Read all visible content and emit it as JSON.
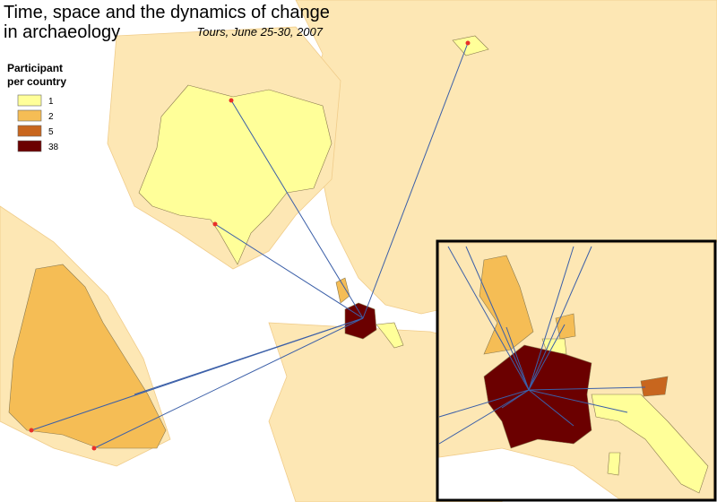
{
  "title_lines": [
    "Time, space and the dynamics of change",
    "in archaeology"
  ],
  "subtitle": "Tours, June 25-30, 2007",
  "legend": {
    "title_lines": [
      "Participant",
      "per country"
    ],
    "items": [
      {
        "value": 1,
        "color": "#ffff99"
      },
      {
        "value": 2,
        "color": "#f5bd55"
      },
      {
        "value": 5,
        "color": "#c8661e"
      },
      {
        "value": 38,
        "color": "#6b0000"
      }
    ]
  }
}
